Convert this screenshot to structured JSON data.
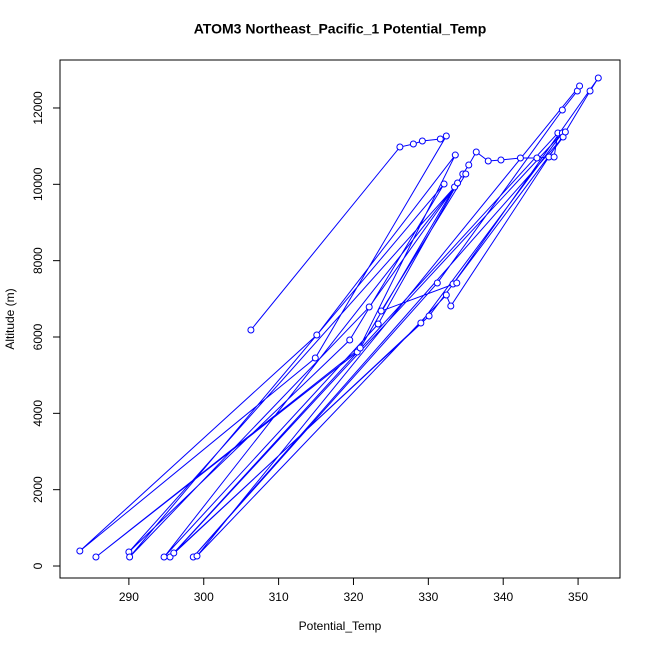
{
  "chart_data": {
    "type": "line",
    "title": "ATOM3 Northeast_Pacific_1 Potential_Temp",
    "x_label": "Potential_Temp",
    "y_label": "Altitude (m)",
    "markers": "open-circle",
    "grid": false,
    "xlim": [
      280.8,
      355.6
    ],
    "xticks": [
      290,
      300,
      310,
      320,
      330,
      340,
      350
    ],
    "ylim": [
      -314,
      13257
    ],
    "yticks": [
      0,
      2000,
      4000,
      6000,
      8000,
      10000,
      12000
    ],
    "series": [
      {
        "name": "Potential_Temp",
        "color": "#0000ff",
        "x": [
          306.3,
          326.2,
          328.0,
          329.2,
          331.6,
          332.4,
          314.9,
          283.45,
          315.1,
          333.6,
          320.5,
          285.6,
          320.9,
          333.5,
          290.0,
          319.5,
          332.1,
          290.1,
          322.1,
          333.9,
          294.7,
          323.3,
          334.6,
          335.4,
          336.4,
          338.0,
          339.7,
          342.3,
          344.5,
          346.1,
          346.8,
          347.3,
          295.5,
          329.0,
          347.9,
          296.0,
          330.1,
          348.0,
          298.6,
          331.2,
          347.9,
          349.9,
          350.2,
          299.1,
          332.4,
          333.0,
          348.3,
          351.6,
          352.7,
          333.3,
          333.8,
          323.7,
          335.0
        ],
        "values": [
          6183,
          10977,
          11056,
          11134,
          11187,
          11265,
          5449,
          393,
          6052,
          10767,
          5606,
          236,
          5711,
          9929,
          367,
          5921,
          10008,
          236,
          6785,
          10034,
          236,
          6340,
          10270,
          10506,
          10846,
          10610,
          10637,
          10689,
          10689,
          10715,
          10715,
          11344,
          236,
          6366,
          11344,
          340,
          6550,
          11239,
          236,
          7414,
          11947,
          12445,
          12576,
          262,
          7100,
          6812,
          11370,
          12445,
          12785,
          7388,
          7414,
          6680,
          10270
        ]
      }
    ]
  }
}
